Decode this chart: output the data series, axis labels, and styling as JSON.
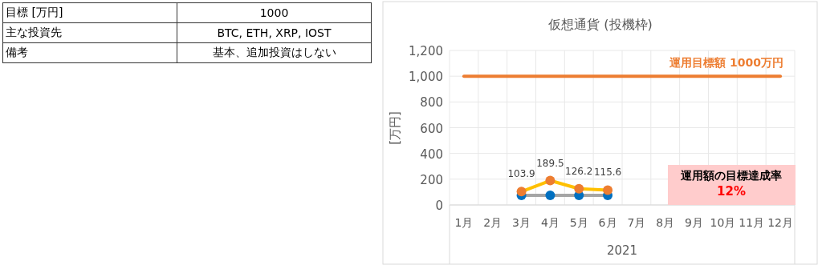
{
  "chart_data": [
    {
      "type": "other",
      "annotations": [
        "目標 [万円]",
        "1000",
        "主な投資先",
        "BTC, ETH, XRP, IOST",
        "備考",
        "基本、追加投資はしない"
      ]
    },
    {
      "type": "line",
      "title": "仮想通貨 (投機枠)",
      "ylabel": "[万円]",
      "xlabel": "2021",
      "categories": [
        "1月",
        "2月",
        "3月",
        "4月",
        "5月",
        "6月",
        "7月",
        "8月",
        "9月",
        "10月",
        "11月",
        "12月"
      ],
      "series": [
        {
          "color": "#a5a5a5",
          "colors": [
            "#0070c0",
            "#0070c0",
            "#0070c0",
            "#0070c0",
            "#0070c0",
            "#0070c0",
            "#0070c0",
            "#0070c0",
            "#0070c0",
            "#0070c0",
            "#0070c0",
            "#0070c0"
          ],
          "values": [
            null,
            null,
            75,
            75,
            75,
            75,
            null,
            null,
            null,
            null,
            null,
            null
          ]
        },
        {
          "color": "#ffc000",
          "colors": [
            "#ed7d31",
            "#ed7d31",
            "#ed7d31",
            "#ed7d31",
            "#ed7d31",
            "#ed7d31",
            "#ed7d31",
            "#ed7d31",
            "#ed7d31",
            "#ed7d31",
            "#ed7d31",
            "#ed7d31"
          ],
          "values": [
            null,
            null,
            103.9,
            189.5,
            126.2,
            115.6,
            null,
            null,
            null,
            null,
            null,
            null
          ],
          "value_labels": [
            null,
            null,
            "103.9",
            "189.5",
            "126.2",
            "115.6",
            null,
            null,
            null,
            null,
            null,
            null
          ]
        }
      ],
      "ref_lines": [
        {
          "axis": "y",
          "value": 1000,
          "label": "運用目標額 1000万円",
          "color": "#ed7d31"
        }
      ],
      "annotations": [
        "運用額の目標達成率",
        "12%"
      ],
      "ylim": [
        0,
        1200
      ],
      "yticks": [
        0,
        {
          "value": 200,
          "label": "200"
        },
        400,
        600,
        800,
        {
          "value": 1000,
          "label": "1,000"
        },
        {
          "value": 1200,
          "label": "1,200"
        }
      ],
      "grid": true,
      "marker": "circle",
      "line_style": "solid"
    }
  ]
}
